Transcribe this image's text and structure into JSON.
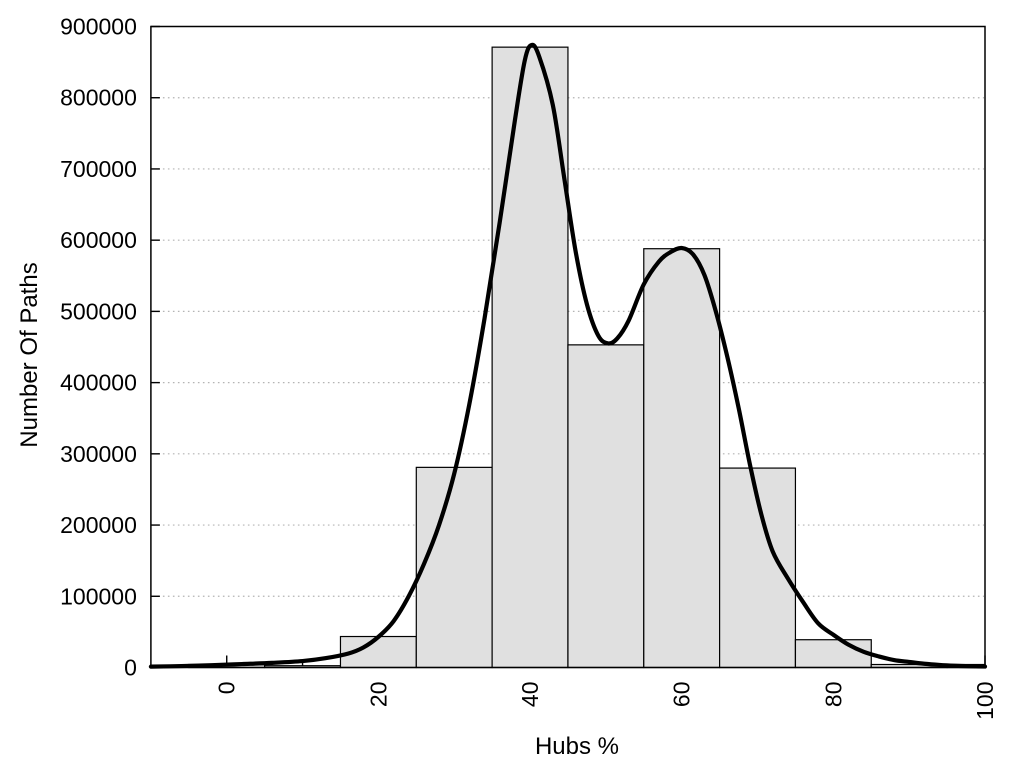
{
  "figure": {
    "background": "#ffffff",
    "frame_color": "#000000"
  },
  "chart_data": {
    "type": "bar",
    "subtype": "histogram-with-density-curve",
    "title": "",
    "xlabel": "Hubs %",
    "ylabel": "Number Of Paths",
    "xlim": [
      -10,
      100
    ],
    "ylim": [
      0,
      900000
    ],
    "grid": "horizontal-dotted",
    "grid_color": "#b4b4b4",
    "legend": "none",
    "x_major_ticks": [
      0,
      20,
      40,
      60,
      80,
      100
    ],
    "x_minor_ticks": [
      10,
      30,
      50,
      70,
      90
    ],
    "y_ticks": [
      0,
      100000,
      200000,
      300000,
      400000,
      500000,
      600000,
      700000,
      800000,
      900000
    ],
    "bars": {
      "bin_width": 10,
      "centers": [
        0,
        10,
        20,
        30,
        40,
        50,
        60,
        70,
        80,
        90,
        100
      ],
      "counts": [
        4200,
        2500,
        43500,
        281000,
        871000,
        453000,
        588000,
        280000,
        39000,
        4200,
        4200
      ],
      "fill": "#e0e0e0",
      "stroke": "#000000"
    },
    "density_curve": {
      "color": "#000000",
      "points": [
        [
          -10,
          1200
        ],
        [
          -6,
          2000
        ],
        [
          -2,
          3200
        ],
        [
          2,
          4800
        ],
        [
          6,
          6500
        ],
        [
          10,
          9000
        ],
        [
          13,
          13000
        ],
        [
          16,
          19500
        ],
        [
          18,
          28000
        ],
        [
          20,
          43000
        ],
        [
          22,
          65000
        ],
        [
          24,
          100000
        ],
        [
          26,
          145000
        ],
        [
          28,
          200000
        ],
        [
          30,
          272000
        ],
        [
          32,
          370000
        ],
        [
          34,
          490000
        ],
        [
          36,
          625000
        ],
        [
          38,
          768000
        ],
        [
          39.3,
          852000
        ],
        [
          40.2,
          874000
        ],
        [
          41.2,
          858000
        ],
        [
          43,
          790000
        ],
        [
          44.5,
          688000
        ],
        [
          46,
          585000
        ],
        [
          47.5,
          510000
        ],
        [
          49,
          466000
        ],
        [
          50.3,
          455000
        ],
        [
          51.5,
          462000
        ],
        [
          53,
          487000
        ],
        [
          55,
          538000
        ],
        [
          57,
          570000
        ],
        [
          58.5,
          583000
        ],
        [
          60,
          589000
        ],
        [
          61.5,
          580000
        ],
        [
          63,
          551000
        ],
        [
          64.5,
          500000
        ],
        [
          66,
          437000
        ],
        [
          67.5,
          365000
        ],
        [
          69,
          285000
        ],
        [
          70.5,
          215000
        ],
        [
          72,
          163000
        ],
        [
          74,
          125000
        ],
        [
          76,
          92000
        ],
        [
          78,
          62000
        ],
        [
          80,
          46000
        ],
        [
          82,
          32000
        ],
        [
          84,
          22000
        ],
        [
          86,
          15500
        ],
        [
          88,
          10500
        ],
        [
          90,
          7800
        ],
        [
          92,
          5300
        ],
        [
          94,
          3600
        ],
        [
          96,
          2500
        ],
        [
          98,
          1800
        ],
        [
          100,
          1300
        ]
      ]
    }
  }
}
